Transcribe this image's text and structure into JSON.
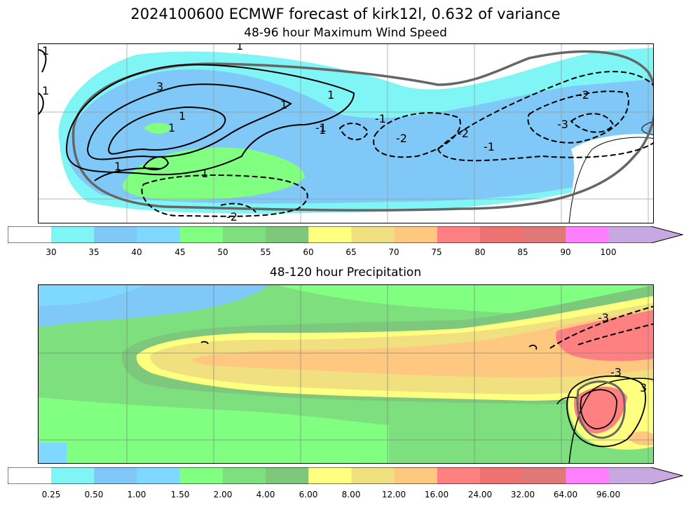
{
  "title": "2024100600 ECMWF forecast of kirk12l, 0.632 of variance",
  "panels": [
    {
      "subtitle": "48-96 hour Maximum Wind Speed",
      "colorbar_ticks": [
        "30",
        "35",
        "40",
        "45",
        "50",
        "55",
        "60",
        "65",
        "70",
        "75",
        "80",
        "85",
        "90",
        "100"
      ],
      "contour_labels": [
        "1",
        "1",
        "1",
        "1",
        "1",
        "1",
        "1",
        "1",
        "1",
        "1",
        "3",
        "-1",
        "-1",
        "-2",
        "-2",
        "-2",
        "-3",
        "-1",
        "-2"
      ]
    },
    {
      "subtitle": "48-120 hour Precipitation",
      "colorbar_ticks": [
        "0.25",
        "0.50",
        "1.00",
        "1.50",
        "2.00",
        "4.00",
        "6.00",
        "8.00",
        "12.00",
        "16.00",
        "24.00",
        "32.00",
        "64.00",
        "96.00"
      ],
      "contour_labels": [
        "-3",
        "-3",
        "3"
      ]
    }
  ],
  "colorbar_colors": [
    "#ffffff",
    "#7ff5f5",
    "#7fc8f8",
    "#7fd8ff",
    "#80ff80",
    "#7ddf7d",
    "#7dc87d",
    "#ffff80",
    "#f0e080",
    "#ffc880",
    "#ff8080",
    "#ee7272",
    "#e07878",
    "#ff80ff",
    "#c8a8e0"
  ]
}
